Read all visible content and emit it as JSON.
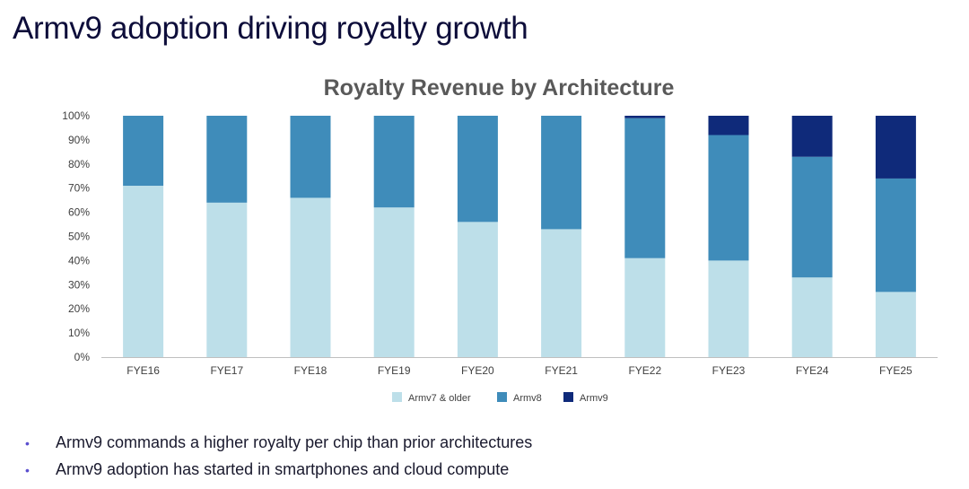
{
  "slide": {
    "title": "Armv9 adoption driving royalty growth",
    "bullets": [
      "Armv9 commands a higher royalty per chip than prior architectures",
      "Armv9 adoption has started in smartphones and cloud compute"
    ],
    "bullet_marker": "•",
    "bullet_color": "#5b4fcf"
  },
  "chart_data": {
    "type": "bar",
    "stacked": true,
    "title": "Royalty Revenue by Architecture",
    "categories": [
      "FYE16",
      "FYE17",
      "FYE18",
      "FYE19",
      "FYE20",
      "FYE21",
      "FYE22",
      "FYE23",
      "FYE24",
      "FYE25"
    ],
    "series": [
      {
        "name": "Armv7 & older",
        "color": "#bddfe9",
        "values": [
          71,
          64,
          66,
          62,
          56,
          53,
          41,
          40,
          33,
          27
        ]
      },
      {
        "name": "Armv8",
        "color": "#3f8cba",
        "values": [
          29,
          36,
          34,
          38,
          44,
          47,
          58,
          52,
          50,
          47
        ]
      },
      {
        "name": "Armv9",
        "color": "#0f2a7a",
        "values": [
          0,
          0,
          0,
          0,
          0,
          0,
          1,
          8,
          17,
          26
        ]
      }
    ],
    "ylim": [
      0,
      100
    ],
    "yticks": [
      "0%",
      "10%",
      "20%",
      "30%",
      "40%",
      "50%",
      "60%",
      "70%",
      "80%",
      "90%",
      "100%"
    ],
    "xlabel": "",
    "ylabel": "",
    "grid": false,
    "legend": "bottom-center"
  }
}
